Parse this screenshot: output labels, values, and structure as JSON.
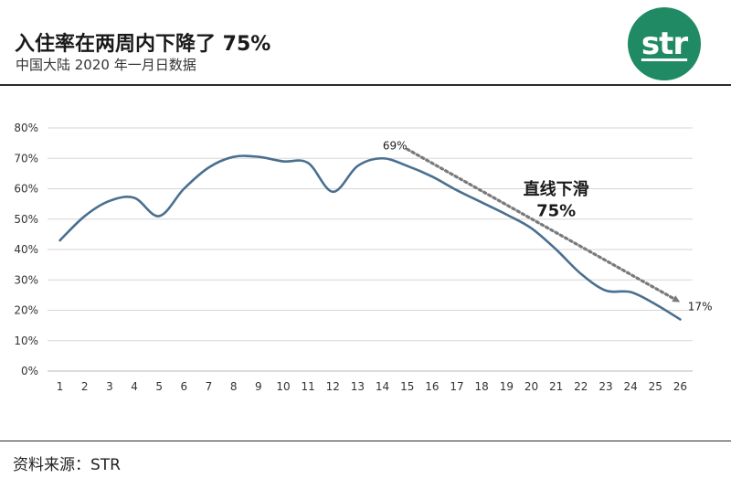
{
  "header": {
    "title": "入住率在两周内下降了 75%",
    "subtitle": "中国大陆 2020 年一月日数据",
    "logo_text": "str",
    "logo_color": "#1f8a63"
  },
  "footer": {
    "source": "资料来源：STR"
  },
  "chart_data": {
    "type": "line",
    "title": "入住率在两周内下降了 75%",
    "subtitle": "中国大陆 2020 年一月日数据",
    "xlabel": "",
    "ylabel": "",
    "x": [
      1,
      2,
      3,
      4,
      5,
      6,
      7,
      8,
      9,
      10,
      11,
      12,
      13,
      14,
      15,
      16,
      17,
      18,
      19,
      20,
      21,
      22,
      23,
      24,
      25,
      26
    ],
    "x_tick_labels": [
      "1",
      "2",
      "3",
      "4",
      "5",
      "6",
      "7",
      "8",
      "9",
      "10",
      "11",
      "12",
      "13",
      "14",
      "15",
      "16",
      "17",
      "18",
      "19",
      "20",
      "21",
      "22",
      "23",
      "24",
      "25",
      "26"
    ],
    "series": [
      {
        "values": [
          43,
          51,
          56,
          57,
          51,
          60,
          67,
          70.5,
          70.5,
          69,
          68.5,
          59,
          67.5,
          70,
          67.5,
          64,
          59.5,
          55.5,
          51.5,
          47,
          40,
          32,
          26.5,
          26,
          22,
          17
        ],
        "color": "#4a6f8f"
      }
    ],
    "ylim": [
      0,
      80
    ],
    "y_ticks": [
      0,
      10,
      20,
      30,
      40,
      50,
      60,
      70,
      80
    ],
    "y_tick_labels": [
      "0%",
      "10%",
      "20%",
      "30%",
      "40%",
      "50%",
      "60%",
      "70%",
      "80%"
    ],
    "grid": true,
    "trend_arrow": {
      "from": [
        15,
        73
      ],
      "to": [
        26,
        23
      ],
      "color": "#7a7a7a",
      "style": "dotted"
    },
    "annotations": [
      {
        "text": "69%",
        "x": 14.5,
        "y": 73
      },
      {
        "text": "17%",
        "x": 26.8,
        "y": 20
      },
      {
        "text": "直线下滑",
        "x": 21,
        "y": 58
      },
      {
        "text": "75%",
        "x": 21,
        "y": 51
      }
    ]
  }
}
